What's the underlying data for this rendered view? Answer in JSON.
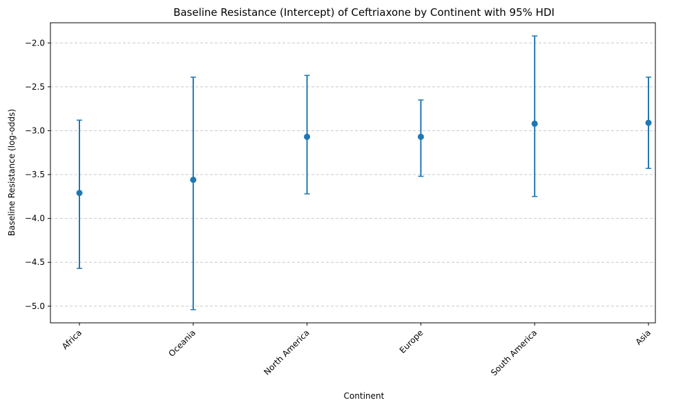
{
  "chart_data": {
    "type": "errorbar",
    "title": "Baseline Resistance (Intercept) of Ceftriaxone by Continent with 95% HDI",
    "xlabel": "Continent",
    "ylabel": "Baseline Resistance (log-odds)",
    "categories": [
      "Africa",
      "Oceania",
      "North America",
      "Europe",
      "South America",
      "Asia"
    ],
    "series": [
      {
        "values": [
          -3.71,
          -3.56,
          -3.07,
          -3.07,
          -2.92,
          -2.91
        ],
        "lower": [
          -4.57,
          -5.04,
          -3.72,
          -3.52,
          -3.75,
          -3.43
        ],
        "upper": [
          -2.88,
          -2.39,
          -2.37,
          -2.65,
          -1.92,
          -2.39
        ],
        "color": "#1f77b4"
      }
    ],
    "ylim": [
      -5.19,
      -1.77
    ],
    "yticks": [
      -5.0,
      -4.5,
      -4.0,
      -3.5,
      -3.0,
      -2.5,
      -2.0
    ],
    "ytick_labels": [
      "−5.0",
      "−4.5",
      "−4.0",
      "−3.5",
      "−3.0",
      "−2.5",
      "−2.0"
    ],
    "grid": "y-dashed",
    "legend": "none"
  }
}
